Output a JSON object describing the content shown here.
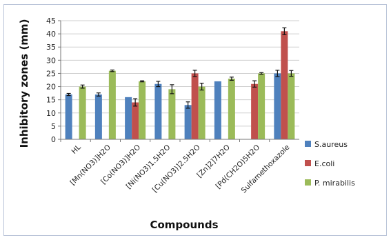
{
  "chart_data": {
    "type": "bar",
    "title": "",
    "xlabel": "Compounds",
    "ylabel": "Inhibitory  zones (mm)",
    "ylim": [
      0,
      45
    ],
    "yticks": [
      0,
      5,
      10,
      15,
      20,
      25,
      30,
      35,
      40,
      45
    ],
    "grid": true,
    "legend_position": "right",
    "categories": [
      "HL",
      "[Mn(NO3)]H2O",
      "[Co(NO3)]H2O",
      "[Ni(NO3)1.5H2O",
      "[Cu(NO3)]2.5H2O",
      "[Zn]2]7H2O",
      "[Pd(CH2O)5H2O",
      "Sulfamethoxazole"
    ],
    "series": [
      {
        "name": "S.aureus",
        "color": "#4f81bd",
        "values": [
          17,
          17,
          16,
          21,
          13,
          22,
          null,
          25
        ],
        "errors": [
          0.4,
          0.6,
          0,
          1.0,
          1.2,
          0,
          null,
          1.2
        ]
      },
      {
        "name": "E.coli",
        "color": "#c0504d",
        "values": [
          null,
          null,
          14,
          null,
          25,
          null,
          21,
          41
        ],
        "errors": [
          null,
          null,
          1.4,
          null,
          1.2,
          null,
          1.2,
          1.3
        ]
      },
      {
        "name": "P. mirabilis",
        "color": "#9bbb59",
        "values": [
          20,
          26,
          22,
          19,
          20,
          23,
          25,
          25
        ],
        "errors": [
          0.6,
          0.3,
          0.2,
          1.7,
          1.3,
          0.6,
          0.3,
          1.1
        ]
      }
    ]
  }
}
